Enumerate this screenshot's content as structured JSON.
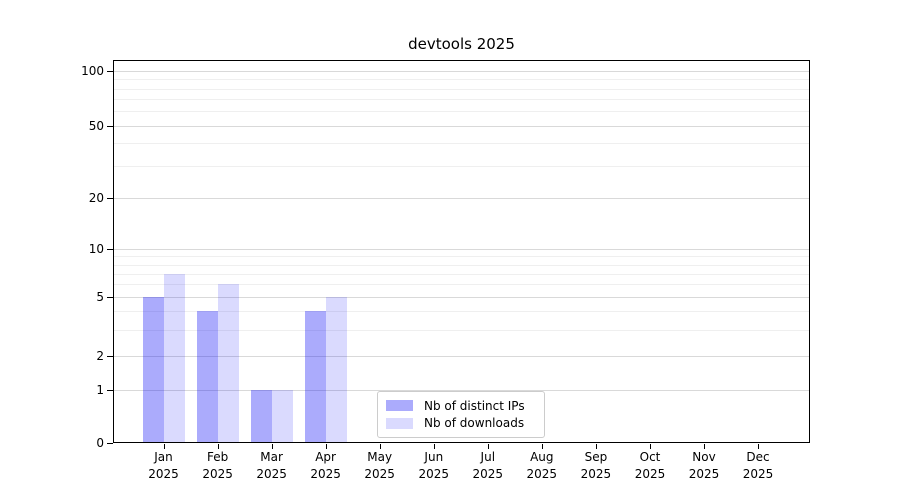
{
  "chart_data": {
    "type": "bar",
    "title": "devtools 2025",
    "categories": [
      "Jan",
      "Feb",
      "Mar",
      "Apr",
      "May",
      "Jun",
      "Jul",
      "Aug",
      "Sep",
      "Oct",
      "Nov",
      "Dec"
    ],
    "category_year": "2025",
    "series": [
      {
        "name": "Nb of distinct IPs",
        "color": "rgba(10,10,245,0.34)",
        "values": [
          5,
          4,
          1,
          4,
          0,
          0,
          0,
          0,
          0,
          0,
          0,
          0
        ]
      },
      {
        "name": "Nb of downloads",
        "color": "rgba(10,10,245,0.15)",
        "values": [
          7,
          6,
          1,
          5,
          0,
          0,
          0,
          0,
          0,
          0,
          0,
          0
        ]
      }
    ],
    "yscale": "log-like (linear 0-1, log above)",
    "yticks": [
      0,
      1,
      2,
      5,
      10,
      20,
      50,
      100
    ],
    "minor_gridline_values": [
      3,
      4,
      6,
      7,
      8,
      9,
      30,
      40,
      60,
      70,
      80,
      90
    ],
    "ylim": [
      0,
      115
    ],
    "grid": true,
    "legend_position": "lower center"
  },
  "style": {
    "background": "#ffffff",
    "major_grid_color": "#d9d9d9",
    "minor_grid_color": "#efefef",
    "spine_color": "#000000",
    "text_color": "#000000",
    "legend_border_color": "#cccccc"
  }
}
